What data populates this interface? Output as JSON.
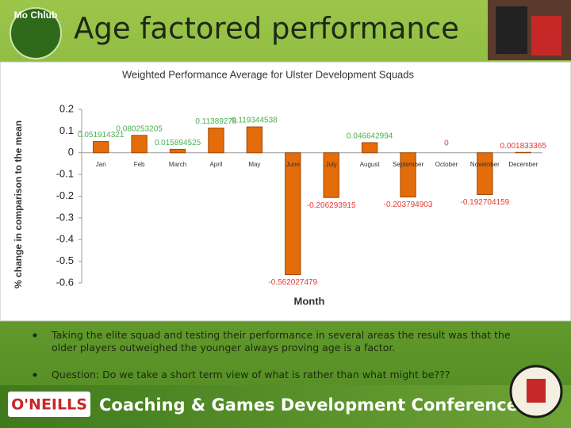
{
  "header": {
    "title": "Age factored performance",
    "logo_text": "Mo Chlub"
  },
  "chart_data": {
    "type": "bar",
    "title": "Weighted Performance Average for Ulster Development Squads",
    "x_label": "Month",
    "y_label": "% change in comparison to the mean",
    "categories": [
      "Jan",
      "Feb",
      "March",
      "April",
      "May",
      "June",
      "July",
      "August",
      "September",
      "October",
      "November",
      "December"
    ],
    "values": [
      0.051914321,
      0.080253205,
      0.015894525,
      0.11389278,
      0.119344538,
      -0.562027479,
      -0.206293915,
      0.046642994,
      -0.203794903,
      0,
      -0.192704159,
      0.001833365
    ],
    "color": "#e46c0a",
    "value_label_colors": [
      "#4caf50",
      "#4caf50",
      "#4caf50",
      "#4caf50",
      "#4caf50",
      "#e53935",
      "#e53935",
      "#4caf50",
      "#e53935",
      "#e53935",
      "#e53935",
      "#e53935"
    ],
    "ylim": [
      -0.6,
      0.2
    ],
    "yticks": [
      -0.6,
      -0.5,
      -0.4,
      -0.3,
      -0.2,
      -0.1,
      0,
      0.1,
      0.2
    ],
    "grid": false
  },
  "bullets": [
    "Taking the elite squad and testing their performance in several areas the result was that the older players outweighed the younger always proving age is a factor.",
    "Question: Do we take a short term view of what is rather than what might be???"
  ],
  "footer": {
    "brand": "O'NEILLS",
    "conference": "Coaching & Games Development Conference"
  }
}
